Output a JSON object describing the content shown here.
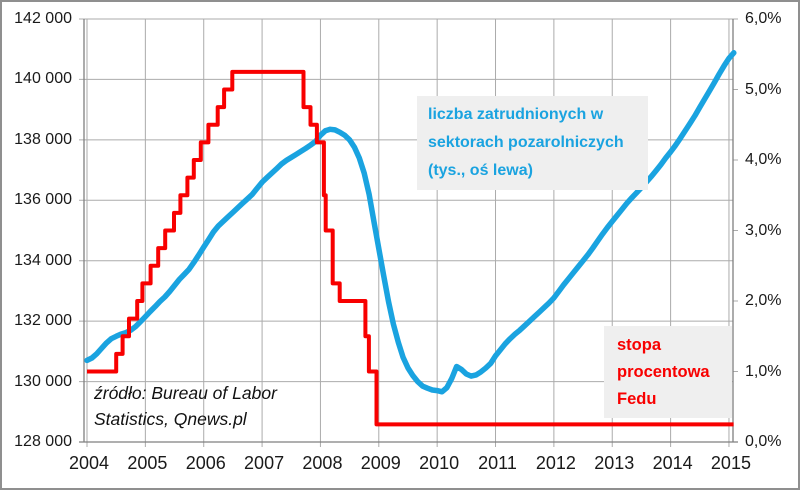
{
  "chart_data": {
    "type": "line",
    "title": "",
    "x_axis": {
      "min": 2004,
      "max": 2015.1,
      "ticks": [
        {
          "v": 2004,
          "label": "2004"
        },
        {
          "v": 2005,
          "label": "2005"
        },
        {
          "v": 2006,
          "label": "2006"
        },
        {
          "v": 2007,
          "label": "2007"
        },
        {
          "v": 2008,
          "label": "2008"
        },
        {
          "v": 2009,
          "label": "2009"
        },
        {
          "v": 2010,
          "label": "2010"
        },
        {
          "v": 2011,
          "label": "2011"
        },
        {
          "v": 2012,
          "label": "2012"
        },
        {
          "v": 2013,
          "label": "2013"
        },
        {
          "v": 2014,
          "label": "2014"
        },
        {
          "v": 2015,
          "label": "2015"
        }
      ]
    },
    "left_axis": {
      "min": 128000,
      "max": 142000,
      "ticks": [
        {
          "v": 142000,
          "label": "142 000"
        },
        {
          "v": 140000,
          "label": "140 000"
        },
        {
          "v": 138000,
          "label": "138 000"
        },
        {
          "v": 136000,
          "label": "136 000"
        },
        {
          "v": 134000,
          "label": "134 000"
        },
        {
          "v": 132000,
          "label": "132 000"
        },
        {
          "v": 130000,
          "label": "130 000"
        },
        {
          "v": 128000,
          "label": "128 000"
        }
      ]
    },
    "right_axis": {
      "min": 0,
      "max": 6,
      "ticks": [
        {
          "v": 6,
          "label": "6,0%"
        },
        {
          "v": 5,
          "label": "5,0%"
        },
        {
          "v": 4,
          "label": "4,0%"
        },
        {
          "v": 3,
          "label": "3,0%"
        },
        {
          "v": 2,
          "label": "2,0%"
        },
        {
          "v": 1,
          "label": "1,0%"
        },
        {
          "v": 0,
          "label": "0,0%"
        }
      ]
    },
    "grid": true,
    "legend_position": "none",
    "series": [
      {
        "name": "liczba zatrudnionych w sektorach pozarolniczych (tys., oś lewa)",
        "axis": "left",
        "color": "#1aa3e0",
        "style": "line",
        "x_start": 2004,
        "x_step": 0.0833333,
        "values": [
          130700,
          130780,
          130920,
          131100,
          131280,
          131420,
          131500,
          131570,
          131620,
          131700,
          131820,
          131980,
          132150,
          132320,
          132480,
          132650,
          132800,
          132980,
          133180,
          133380,
          133550,
          133720,
          133950,
          134200,
          134450,
          134700,
          134950,
          135150,
          135300,
          135450,
          135600,
          135750,
          135900,
          136050,
          136200,
          136400,
          136600,
          136750,
          136900,
          137050,
          137200,
          137320,
          137420,
          137520,
          137620,
          137720,
          137830,
          137950,
          138150,
          138300,
          138350,
          138330,
          138250,
          138150,
          138000,
          137750,
          137400,
          136900,
          136200,
          135300,
          134400,
          133500,
          132650,
          131900,
          131300,
          130800,
          130450,
          130200,
          130000,
          129850,
          129780,
          129720,
          129700,
          129660,
          129800,
          130100,
          130500,
          130400,
          130250,
          130180,
          130220,
          130320,
          130450,
          130600,
          130850,
          131050,
          131250,
          131420,
          131570,
          131700,
          131850,
          132000,
          132150,
          132300,
          132450,
          132600,
          132770,
          132980,
          133200,
          133400,
          133600,
          133800,
          134000,
          134200,
          134420,
          134650,
          134880,
          135100,
          135300,
          135500,
          135700,
          135900,
          136080,
          136250,
          136420,
          136600,
          136780,
          136980,
          137180,
          137400,
          137600,
          137820,
          138050,
          138300,
          138550,
          138800,
          139080,
          139350,
          139620,
          139900,
          140180,
          140450,
          140700,
          140880
        ]
      },
      {
        "name": "stopa procentowa Fedu",
        "axis": "right",
        "color": "#f80000",
        "style": "step",
        "points": [
          [
            2004.0,
            1.0
          ],
          [
            2004.5,
            1.25
          ],
          [
            2004.61,
            1.5
          ],
          [
            2004.72,
            1.75
          ],
          [
            2004.86,
            2.0
          ],
          [
            2004.95,
            2.25
          ],
          [
            2005.09,
            2.5
          ],
          [
            2005.22,
            2.75
          ],
          [
            2005.34,
            3.0
          ],
          [
            2005.49,
            3.25
          ],
          [
            2005.6,
            3.5
          ],
          [
            2005.72,
            3.75
          ],
          [
            2005.83,
            4.0
          ],
          [
            2005.95,
            4.25
          ],
          [
            2006.08,
            4.5
          ],
          [
            2006.24,
            4.75
          ],
          [
            2006.35,
            5.0
          ],
          [
            2006.49,
            5.25
          ],
          [
            2007.71,
            4.75
          ],
          [
            2007.83,
            4.5
          ],
          [
            2007.94,
            4.25
          ],
          [
            2008.06,
            3.5
          ],
          [
            2008.09,
            3.0
          ],
          [
            2008.21,
            2.25
          ],
          [
            2008.33,
            2.0
          ],
          [
            2008.77,
            1.5
          ],
          [
            2008.83,
            1.0
          ],
          [
            2008.96,
            0.25
          ],
          [
            2015.08,
            0.25
          ]
        ]
      }
    ]
  },
  "annotations": {
    "employment_label": {
      "color": "#1aa3e0",
      "lines": [
        "liczba zatrudnionych w",
        "sektorach pozarolniczych",
        "(tys., oś lewa)"
      ]
    },
    "fed_label": {
      "color": "#f80000",
      "lines": [
        "stopa",
        "procentowa",
        "Fedu"
      ]
    },
    "source": {
      "lines": [
        "źródło: Bureau of Labor",
        "Statistics, Qnews.pl"
      ]
    }
  },
  "colors": {
    "employment_line": "#1aa3e0",
    "fed_line": "#f80000",
    "gridline": "#ababab",
    "axis": "#7f7f7f",
    "note_background": "#efefef",
    "frame": "#8f8f8f"
  }
}
